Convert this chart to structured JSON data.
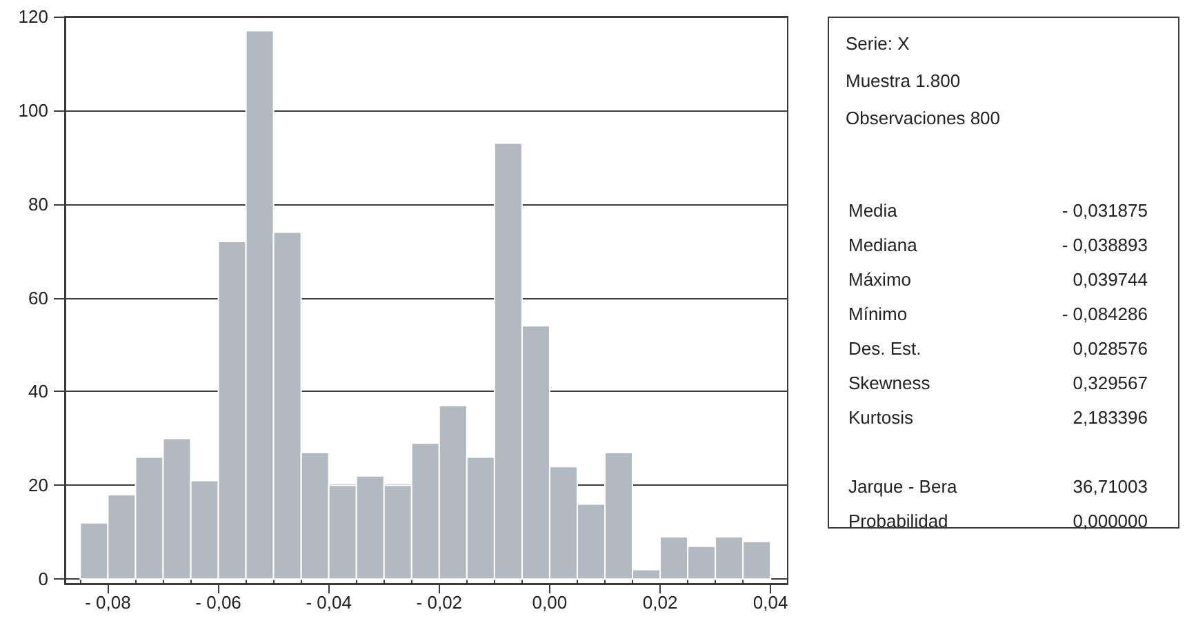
{
  "chart_data": [
    {
      "type": "histogram",
      "bins": [
        -0.085,
        -0.08,
        -0.075,
        -0.07,
        -0.065,
        -0.06,
        -0.055,
        -0.05,
        -0.045,
        -0.04,
        -0.035,
        -0.03,
        -0.025,
        -0.02,
        -0.015,
        -0.01,
        -0.005,
        0,
        0.005,
        0.01,
        0.015,
        0.02,
        0.025,
        0.03,
        0.035,
        0.04
      ],
      "values": [
        12,
        18,
        26,
        30,
        21,
        72,
        117,
        74,
        27,
        20,
        22,
        20,
        29,
        37,
        26,
        93,
        54,
        24,
        16,
        27,
        2,
        9,
        7,
        9,
        8
      ],
      "color": "#b3b9c1",
      "xlim": [
        -0.0878,
        0.0431
      ],
      "xticks": [
        {
          "value": -0.085,
          "label": null
        },
        {
          "value": -0.08,
          "label": "- 0,08"
        },
        {
          "value": -0.075,
          "label": null
        },
        {
          "value": -0.07,
          "label": null
        },
        {
          "value": -0.065,
          "label": null
        },
        {
          "value": -0.06,
          "label": "- 0,06"
        },
        {
          "value": -0.055,
          "label": null
        },
        {
          "value": -0.05,
          "label": null
        },
        {
          "value": -0.045,
          "label": null
        },
        {
          "value": -0.04,
          "label": "- 0,04"
        },
        {
          "value": -0.035,
          "label": null
        },
        {
          "value": -0.03,
          "label": null
        },
        {
          "value": -0.025,
          "label": null
        },
        {
          "value": -0.02,
          "label": "- 0,02"
        },
        {
          "value": -0.015,
          "label": null
        },
        {
          "value": -0.01,
          "label": null
        },
        {
          "value": -0.005,
          "label": null
        },
        {
          "value": 0,
          "label": "0,00"
        },
        {
          "value": 0.005,
          "label": null
        },
        {
          "value": 0.01,
          "label": null
        },
        {
          "value": 0.015,
          "label": null
        },
        {
          "value": 0.02,
          "label": "0,02"
        },
        {
          "value": 0.025,
          "label": null
        },
        {
          "value": 0.03,
          "label": null
        },
        {
          "value": 0.035,
          "label": null
        },
        {
          "value": 0.04,
          "label": "0,04"
        }
      ],
      "ylim": [
        -1,
        120
      ],
      "yticks": [
        0,
        20,
        40,
        60,
        80,
        100,
        120
      ],
      "grid": "y"
    },
    {
      "type": "other",
      "annotations": [
        "Serie: X",
        "Muestra 1.800",
        "Observaciones 800"
      ],
      "categories": [
        "Media",
        "Mediana",
        "Máximo",
        "Mínimo",
        "Des. Est.",
        "Skewness",
        "Kurtosis",
        null,
        "Jarque - Bera",
        "Probabilidad"
      ],
      "value_labels": [
        "- 0,031875",
        "- 0,038893",
        "0,039744",
        "- 0,084286",
        "0,028576",
        "0,329567",
        "2,183396",
        null,
        "36,71003",
        "0,000000"
      ]
    }
  ]
}
